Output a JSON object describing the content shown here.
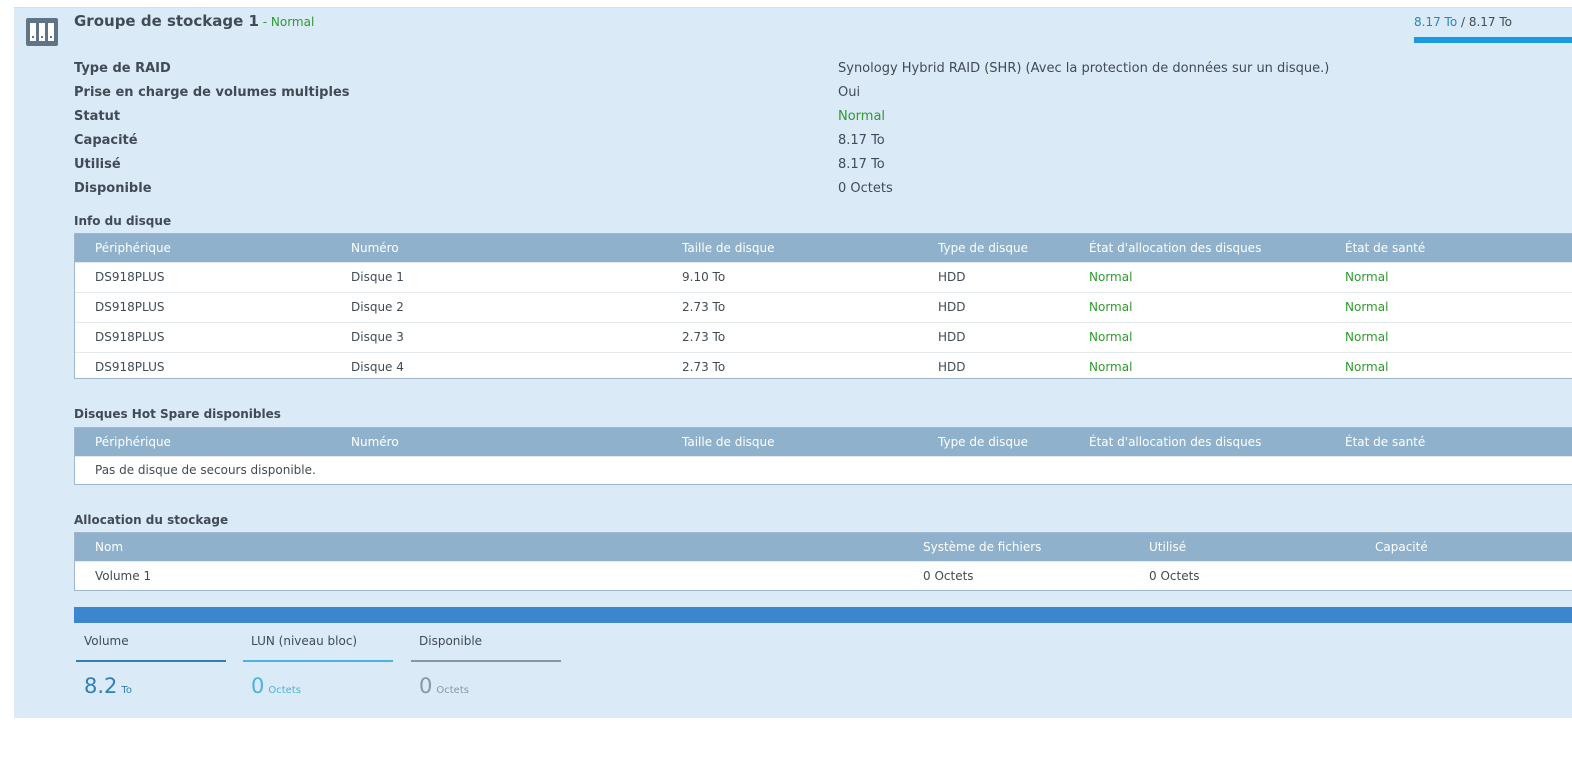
{
  "group": {
    "title": "Groupe de stockage 1",
    "status_prefix": " - ",
    "status": "Normal",
    "used": "8.17 To",
    "separator": " / ",
    "total": "8.17 To",
    "usage_fraction": 1.0
  },
  "properties": [
    {
      "label": "Type de RAID",
      "value": "Synology Hybrid RAID (SHR) (Avec la protection de données sur un disque.)"
    },
    {
      "label": "Prise en charge de volumes multiples",
      "value": "Oui"
    },
    {
      "label": "Statut",
      "value": "Normal"
    },
    {
      "label": "Capacité",
      "value": "8.17 To"
    },
    {
      "label": "Utilisé",
      "value": "8.17 To"
    },
    {
      "label": "Disponible",
      "value": "0 Octets"
    }
  ],
  "disk_info": {
    "title": "Info du disque",
    "columns": [
      "Périphérique",
      "Numéro",
      "Taille de disque",
      "Type de disque",
      "État d'allocation des disques",
      "État de santé"
    ],
    "rows": [
      [
        "DS918PLUS",
        "Disque 1",
        "9.10 To",
        "HDD",
        "Normal",
        "Normal"
      ],
      [
        "DS918PLUS",
        "Disque 2",
        "2.73 To",
        "HDD",
        "Normal",
        "Normal"
      ],
      [
        "DS918PLUS",
        "Disque 3",
        "2.73 To",
        "HDD",
        "Normal",
        "Normal"
      ],
      [
        "DS918PLUS",
        "Disque 4",
        "2.73 To",
        "HDD",
        "Normal",
        "Normal"
      ]
    ]
  },
  "hot_spare": {
    "title": "Disques Hot Spare disponibles",
    "columns": [
      "Périphérique",
      "Numéro",
      "Taille de disque",
      "Type de disque",
      "État d'allocation des disques",
      "État de santé"
    ],
    "empty_text": "Pas de disque de secours disponible."
  },
  "allocation": {
    "title": "Allocation du stockage",
    "columns": [
      "Nom",
      "Système de fichiers",
      "Utilisé",
      "Capacité"
    ],
    "rows": [
      [
        "Volume 1",
        "0 Octets",
        "0 Octets",
        ""
      ]
    ]
  },
  "summary": [
    {
      "label": "Volume",
      "value": "8.2",
      "unit": "To",
      "color": "#2f7fb5"
    },
    {
      "label": "LUN (niveau bloc)",
      "value": "0",
      "unit": "Octets",
      "color": "#4bb3dc"
    },
    {
      "label": "Disponible",
      "value": "0",
      "unit": "Octets",
      "color": "#8a96a2"
    }
  ],
  "colors": {
    "accent": "#1a98e1",
    "normal": "#2e9b2e",
    "header": "#8fb1cc",
    "bar": "#3b86cc"
  },
  "icons": {
    "group": "storage-pool-icon"
  }
}
